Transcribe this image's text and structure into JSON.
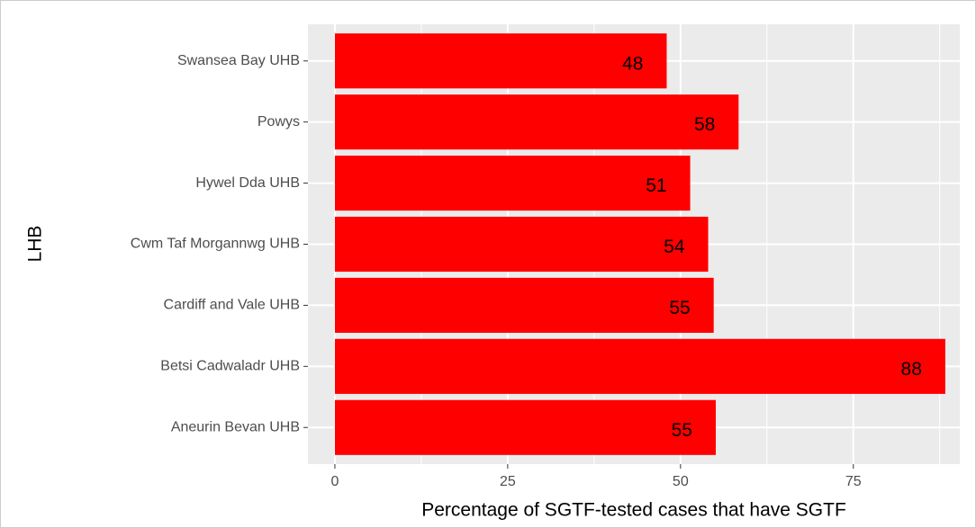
{
  "chart_data": {
    "type": "bar",
    "orientation": "horizontal",
    "x_label": "Percentage of SGTF-tested cases that have SGTF",
    "y_label": "LHB",
    "categories": [
      "Aneurin Bevan UHB",
      "Betsi Cadwaladr UHB",
      "Cardiff and Vale UHB",
      "Cwm Taf Morgannwg UHB",
      "Hywel Dda UHB",
      "Powys",
      "Swansea Bay UHB"
    ],
    "values": [
      55.1,
      88.3,
      54.8,
      54,
      51.4,
      58.4,
      48
    ],
    "value_labels": [
      "55",
      "88",
      "55",
      "54",
      "51",
      "58",
      "48"
    ],
    "color": "#ff0000",
    "xlim": [
      -3.9,
      90.4
    ],
    "xticks": [
      0,
      25,
      50,
      75
    ],
    "minor_xticks": [
      12.5,
      37.5,
      62.5,
      87.5
    ],
    "grid": true
  }
}
